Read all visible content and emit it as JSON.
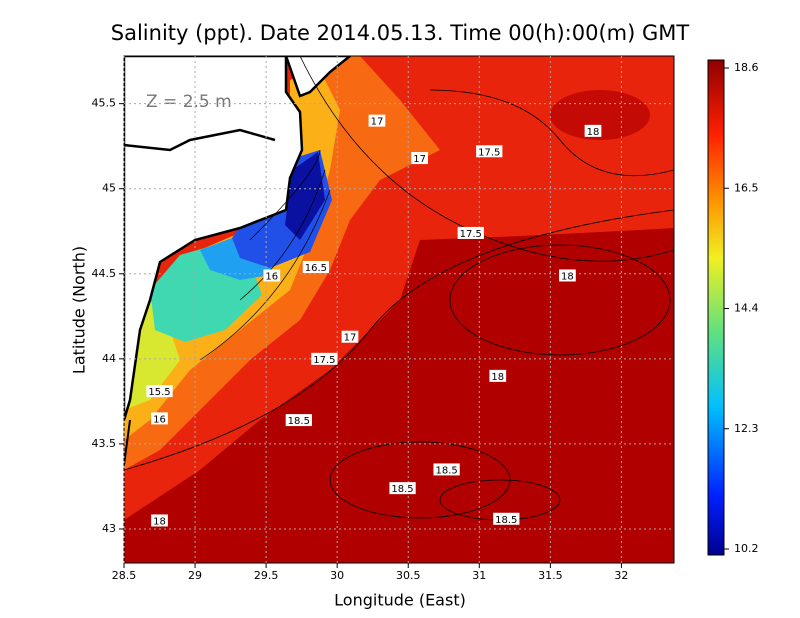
{
  "chart_data": {
    "type": "contour-map",
    "title": "Salinity (ppt). Date 2014.05.13. Time 00(h):00(m) GMT",
    "annotation": "Z = 2.5 m",
    "x_label": "Longitude (East)",
    "y_label": "Latitude (North)",
    "xlim": [
      28.5,
      32.37
    ],
    "ylim": [
      42.8,
      45.78
    ],
    "xticks": [
      28.5,
      29,
      29.5,
      30,
      30.5,
      31,
      31.5,
      32
    ],
    "yticks": [
      43,
      43.5,
      44,
      44.5,
      45,
      45.5
    ],
    "grid": true,
    "colorbar": {
      "lim": [
        10.2,
        18.6
      ],
      "ticks": [
        18.6,
        16.5,
        14.4,
        12.3,
        10.2
      ]
    },
    "contour_labels": [
      {
        "value": 17,
        "lon": 30.28,
        "lat": 45.4
      },
      {
        "value": 17,
        "lon": 30.58,
        "lat": 45.18
      },
      {
        "value": 17.5,
        "lon": 31.07,
        "lat": 45.22
      },
      {
        "value": 18,
        "lon": 31.8,
        "lat": 45.34
      },
      {
        "value": 17.5,
        "lon": 30.94,
        "lat": 44.74
      },
      {
        "value": 18,
        "lon": 31.62,
        "lat": 44.49
      },
      {
        "value": 16.5,
        "lon": 29.85,
        "lat": 44.54
      },
      {
        "value": 16,
        "lon": 29.54,
        "lat": 44.49
      },
      {
        "value": 17,
        "lon": 30.09,
        "lat": 44.13
      },
      {
        "value": 17.5,
        "lon": 29.91,
        "lat": 44.0
      },
      {
        "value": 18,
        "lon": 31.13,
        "lat": 43.9
      },
      {
        "value": 15.5,
        "lon": 28.75,
        "lat": 43.81
      },
      {
        "value": 16,
        "lon": 28.75,
        "lat": 43.65
      },
      {
        "value": 18.5,
        "lon": 29.73,
        "lat": 43.64
      },
      {
        "value": 18.5,
        "lon": 30.77,
        "lat": 43.35
      },
      {
        "value": 18.5,
        "lon": 30.46,
        "lat": 43.24
      },
      {
        "value": 18.5,
        "lon": 31.19,
        "lat": 43.06
      },
      {
        "value": 18,
        "lon": 28.75,
        "lat": 43.05
      }
    ]
  }
}
